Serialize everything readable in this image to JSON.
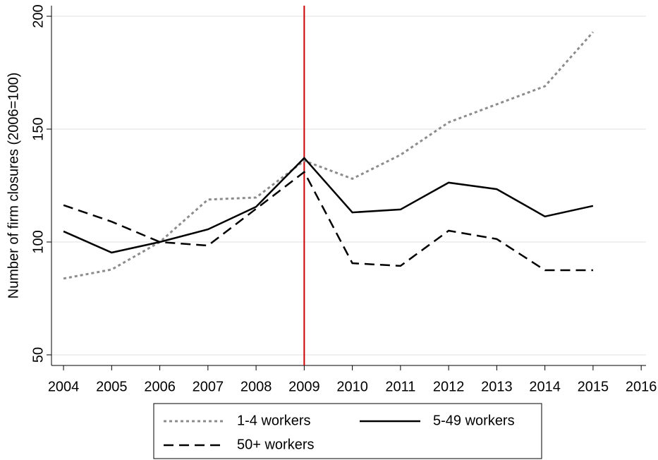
{
  "chart_data": {
    "type": "line",
    "y_label": "Number of firm closures (2006=100)",
    "x": [
      2004,
      2005,
      2006,
      2007,
      2008,
      2009,
      2010,
      2011,
      2012,
      2013,
      2014,
      2015
    ],
    "series": [
      {
        "name": "1-4 workers",
        "color": "#8c8c8c",
        "dash": "dotted",
        "values": [
          83.8,
          87.8,
          100,
          118.8,
          119.7,
          136,
          128,
          138.6,
          153,
          161,
          169,
          193
        ]
      },
      {
        "name": "5-49 workers",
        "color": "#000000",
        "dash": "solid",
        "values": [
          104.7,
          95.3,
          100,
          105.6,
          115.6,
          137.2,
          113.1,
          114.4,
          126.3,
          123.4,
          111.3,
          116
        ]
      },
      {
        "name": "50+ workers",
        "color": "#000000",
        "dash": "dashed",
        "values": [
          116.3,
          109,
          100,
          98.4,
          114.7,
          131,
          90.6,
          89.4,
          105,
          101.3,
          87.5,
          87.5
        ]
      }
    ],
    "xlim": [
      2003.75,
      2016.1
    ],
    "xticks": [
      2004,
      2005,
      2006,
      2007,
      2008,
      2009,
      2010,
      2011,
      2012,
      2013,
      2014,
      2015,
      2016
    ],
    "ylim": [
      45.3,
      204.7
    ],
    "yticks": [
      50,
      100,
      150,
      200
    ],
    "grid": true,
    "vline": 2009,
    "vline_color": "#cc0000",
    "legend_position": "bottom"
  }
}
